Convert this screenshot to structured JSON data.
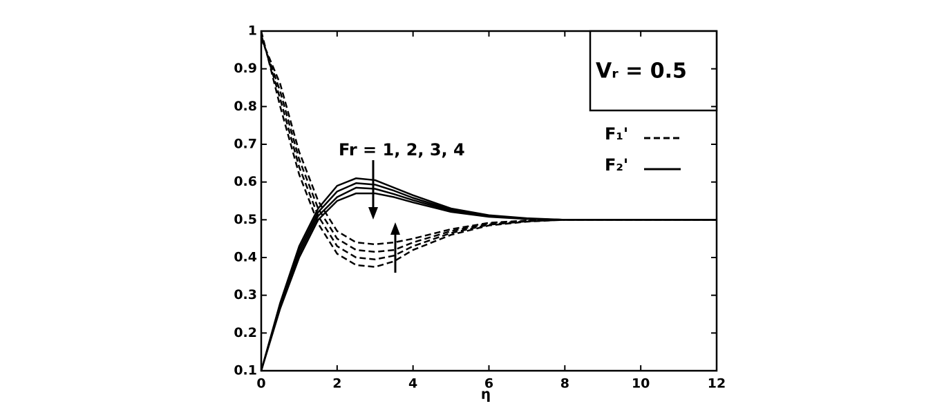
{
  "chart_data": {
    "type": "line",
    "x_label": "η",
    "annotation": "Fr = 1, 2, 3, 4",
    "box_label": "Vᵣ = 0.5",
    "x": [
      0,
      0.5,
      1,
      1.5,
      2,
      2.5,
      3,
      3.5,
      4,
      5,
      6,
      7,
      8,
      9,
      10,
      12
    ],
    "series": [
      {
        "name": "F₁'",
        "color": "#000000",
        "dashed": true,
        "values": [
          [
            1.0,
            0.8,
            0.62,
            0.49,
            0.41,
            0.38,
            0.375,
            0.39,
            0.42,
            0.46,
            0.485,
            0.495,
            0.5,
            0.5,
            0.5,
            0.5
          ],
          [
            0.99,
            0.82,
            0.64,
            0.51,
            0.43,
            0.4,
            0.395,
            0.405,
            0.43,
            0.465,
            0.487,
            0.496,
            0.5,
            0.5,
            0.5,
            0.5
          ],
          [
            0.985,
            0.84,
            0.66,
            0.53,
            0.45,
            0.42,
            0.415,
            0.42,
            0.44,
            0.47,
            0.49,
            0.497,
            0.5,
            0.5,
            0.5,
            0.5
          ],
          [
            0.98,
            0.86,
            0.68,
            0.55,
            0.47,
            0.44,
            0.435,
            0.44,
            0.45,
            0.475,
            0.492,
            0.498,
            0.5,
            0.5,
            0.5,
            0.5
          ]
        ]
      },
      {
        "name": "F₂'",
        "color": "#000000",
        "dashed": false,
        "values": [
          [
            0.1,
            0.28,
            0.43,
            0.53,
            0.59,
            0.61,
            0.605,
            0.585,
            0.565,
            0.53,
            0.512,
            0.504,
            0.5,
            0.5,
            0.5,
            0.5
          ],
          [
            0.1,
            0.275,
            0.42,
            0.52,
            0.575,
            0.597,
            0.593,
            0.577,
            0.558,
            0.527,
            0.51,
            0.503,
            0.5,
            0.5,
            0.5,
            0.5
          ],
          [
            0.1,
            0.27,
            0.41,
            0.51,
            0.56,
            0.585,
            0.582,
            0.568,
            0.552,
            0.524,
            0.509,
            0.503,
            0.5,
            0.5,
            0.5,
            0.5
          ],
          [
            0.1,
            0.265,
            0.4,
            0.5,
            0.55,
            0.57,
            0.57,
            0.56,
            0.546,
            0.521,
            0.508,
            0.502,
            0.5,
            0.5,
            0.5,
            0.5
          ]
        ]
      }
    ],
    "xlim": [
      0,
      12
    ],
    "xticks": [
      0,
      2,
      4,
      6,
      8,
      10,
      12
    ],
    "ylim": [
      0.1,
      1
    ],
    "yticks": [
      0.1,
      0.2,
      0.3,
      0.4,
      0.5,
      0.6,
      0.7,
      0.8,
      0.9,
      1
    ],
    "grid": false
  }
}
